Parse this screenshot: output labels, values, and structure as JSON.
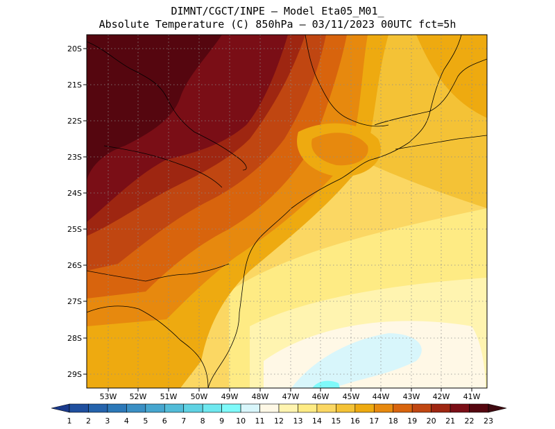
{
  "header": {
    "line1": "DIMNT/CGCT/INPE –  Model Eta05_M01_",
    "line2": "Absolute Temperature (C) 850hPa –  03/11/2023 00UTC fct=5h"
  },
  "map": {
    "lat_labels": [
      "20S",
      "21S",
      "22S",
      "23S",
      "24S",
      "25S",
      "26S",
      "27S",
      "28S",
      "29S"
    ],
    "lon_labels": [
      "53W",
      "52W",
      "51W",
      "50W",
      "49W",
      "48W",
      "47W",
      "46W",
      "45W",
      "44W",
      "43W",
      "42W",
      "41W"
    ]
  },
  "colorbar": {
    "labels": [
      "1",
      "2",
      "3",
      "4",
      "5",
      "6",
      "7",
      "8",
      "9",
      "10",
      "11",
      "12",
      "13",
      "14",
      "15",
      "16",
      "17",
      "18",
      "19",
      "20",
      "21",
      "22",
      "23"
    ],
    "colors": [
      "#1a3a8c",
      "#1f4f9e",
      "#2563ac",
      "#2c78b8",
      "#3a8fc4",
      "#46a6cf",
      "#52bcd8",
      "#5fd2e3",
      "#6ee8ef",
      "#7ffafa",
      "#d8f6fb",
      "#fff8e6",
      "#fff4b0",
      "#feeb84",
      "#fbd763",
      "#f4c236",
      "#eeaa10",
      "#e7890e",
      "#d8640d",
      "#c04611",
      "#9e2611",
      "#7a0e16",
      "#55060f",
      "#3f0a10"
    ]
  }
}
